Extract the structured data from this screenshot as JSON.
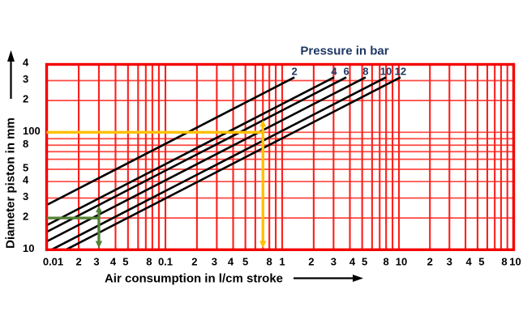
{
  "chart_data": {
    "type": "line",
    "title": "Pressure in bar",
    "xlabel": "Air consumption in l/cm stroke",
    "ylabel": "Diameter piston in mm",
    "title_color": "#1f3864",
    "pressure_label_color": "#1f3864",
    "tick_label_color": "#000000",
    "background": "#ffffff",
    "grid": {
      "on": true,
      "color_vertical": "#fb221c",
      "color_horizontal": "#ff4740",
      "border_color": "#f40000"
    },
    "x_axis": {
      "scale": "log",
      "range": [
        0.01,
        100
      ],
      "ticks": [
        {
          "v": 0.01,
          "label": "0.01",
          "dx": 8
        },
        {
          "v": 0.02,
          "label": "2"
        },
        {
          "v": 0.03,
          "label": "3",
          "dx": -3
        },
        {
          "v": 0.04,
          "label": "4",
          "dx": -3
        },
        {
          "v": 0.05,
          "label": "5",
          "dx": -3
        },
        {
          "v": 0.08,
          "label": "8",
          "dx": -4
        },
        {
          "v": 0.1,
          "label": "0.1"
        },
        {
          "v": 0.2,
          "label": "2",
          "dx": -3
        },
        {
          "v": 0.3,
          "label": "3",
          "dx": -3
        },
        {
          "v": 0.4,
          "label": "4",
          "dx": -3
        },
        {
          "v": 0.5,
          "label": "5"
        },
        {
          "v": 0.8,
          "label": "8"
        },
        {
          "v": 1,
          "label": "1"
        },
        {
          "v": 2,
          "label": "2",
          "dx": -3
        },
        {
          "v": 3,
          "label": "3"
        },
        {
          "v": 4,
          "label": "4",
          "dx": 3
        },
        {
          "v": 5,
          "label": "5",
          "dx": 3
        },
        {
          "v": 8,
          "label": "8"
        },
        {
          "v": 10,
          "label": "10",
          "dx": 3
        },
        {
          "v": 20,
          "label": "2"
        },
        {
          "v": 30,
          "label": "3"
        },
        {
          "v": 40,
          "label": "4",
          "dx": 4
        },
        {
          "v": 50,
          "label": "5",
          "dx": 5
        },
        {
          "v": 80,
          "label": "8",
          "dx": 4
        },
        {
          "v": 100,
          "label": "10",
          "dx": 2
        }
      ]
    },
    "y_axis": {
      "scale": "log",
      "range": [
        10,
        400
      ],
      "ticks": [
        {
          "v": 400,
          "label": "4"
        },
        {
          "v": 300,
          "label": "3"
        },
        {
          "v": 200,
          "label": "2"
        },
        {
          "v": 100,
          "label": "100"
        },
        {
          "v": 80,
          "label": "8"
        },
        {
          "v": 50,
          "label": "5"
        },
        {
          "v": 40,
          "label": "4"
        },
        {
          "v": 30,
          "label": "3"
        },
        {
          "v": 20,
          "label": "2"
        },
        {
          "v": 10,
          "label": "10"
        }
      ]
    },
    "series": [
      {
        "name": "2",
        "pressure_bar": 2,
        "color": "#000000",
        "points": [
          [
            0.01,
            26.5
          ],
          [
            1.39,
            320
          ]
        ]
      },
      {
        "name": "4",
        "pressure_bar": 4,
        "color": "#000000",
        "points": [
          [
            0.01,
            17.7
          ],
          [
            3.03,
            320
          ]
        ]
      },
      {
        "name": "6",
        "pressure_bar": 6,
        "color": "#000000",
        "points": [
          [
            0.01,
            15.6
          ],
          [
            3.78,
            320
          ]
        ]
      },
      {
        "name": "8",
        "pressure_bar": 8,
        "color": "#000000",
        "points": [
          [
            0.01,
            12.6
          ],
          [
            5.35,
            320
          ]
        ]
      },
      {
        "name": "10",
        "pressure_bar": 10,
        "color": "#000000",
        "points": [
          [
            0.0115,
            10
          ],
          [
            7.98,
            320
          ]
        ]
      },
      {
        "name": "12",
        "pressure_bar": 12,
        "color": "#000000",
        "points": [
          [
            0.016,
            10
          ],
          [
            10.5,
            320
          ]
        ]
      }
    ],
    "annotations": [
      {
        "name": "example-100mm",
        "color": "#ffc000",
        "diameter_mm": 100,
        "consumption_l_per_cm": 0.7
      },
      {
        "name": "example-20mm",
        "color": "#538135",
        "diameter_mm": 20,
        "consumption_l_per_cm": 0.03
      }
    ]
  }
}
